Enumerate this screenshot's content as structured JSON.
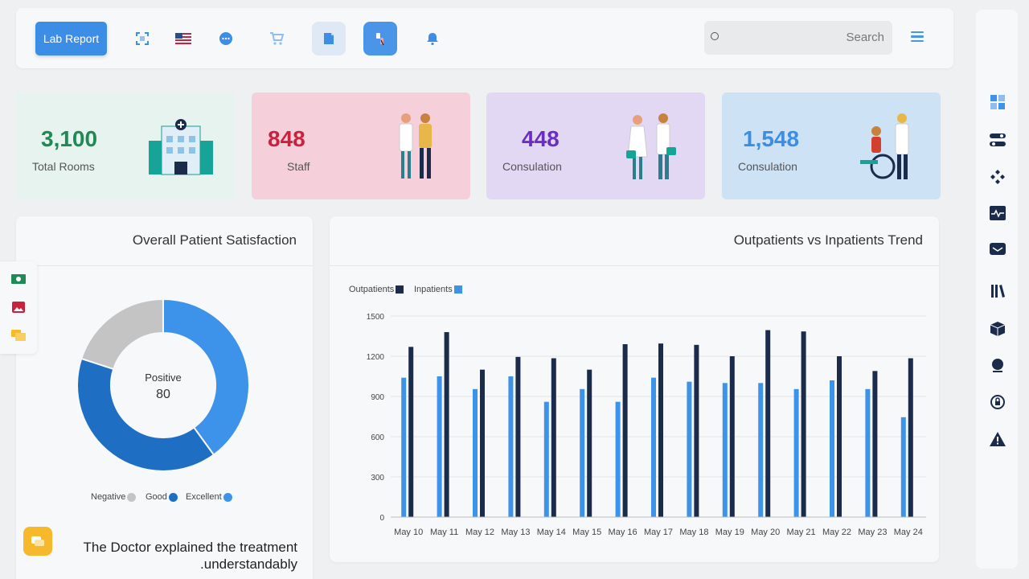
{
  "toolbar": {
    "lab_report_label": "Lab Report",
    "search_placeholder": "Search",
    "icons": [
      "fullscreen-icon",
      "us-flag-icon",
      "chat-icon",
      "cart-icon",
      "note-icon",
      "lab-tube-icon",
      "bell-icon",
      "menu-icon"
    ]
  },
  "stats": [
    {
      "value": "3,100",
      "label": "Total Rooms",
      "color": "#1f8a55",
      "bg": "#e6f3ef",
      "icon": "hospital-icon"
    },
    {
      "value": "848",
      "label": "Staff",
      "color": "#c8223e",
      "bg": "#f5d0da",
      "icon": "doctor-patient-icon"
    },
    {
      "value": "448",
      "label": "Consulation",
      "color": "#6a2fc2",
      "bg": "#e2d8f4",
      "icon": "nurses-icon"
    },
    {
      "value": "1,548",
      "label": "Consulation",
      "color": "#3b8de6",
      "bg": "#cde2f5",
      "icon": "wheelchair-icon"
    }
  ],
  "satisfaction": {
    "title": "Overall Patient Satisfaction",
    "center_label": "Positive",
    "center_value": "80",
    "legend": [
      {
        "name": "Negative",
        "color": "#c4c4c4"
      },
      {
        "name": "Good",
        "color": "#1e6fc4"
      },
      {
        "name": "Excellent",
        "color": "#3d93ea"
      }
    ],
    "quote": "The Doctor explained the treatment .understandably"
  },
  "trend": {
    "title": "Outpatients vs Inpatients Trend"
  },
  "chart_data": [
    {
      "type": "pie",
      "title": "Overall Patient Satisfaction",
      "categories": [
        "Excellent",
        "Good",
        "Negative"
      ],
      "values": [
        40,
        40,
        20
      ],
      "colors": [
        "#3d93ea",
        "#1e6fc4",
        "#c4c4c4"
      ]
    },
    {
      "type": "bar",
      "title": "Outpatients vs Inpatients Trend",
      "categories": [
        "May 10",
        "May 11",
        "May 12",
        "May 13",
        "May 14",
        "May 15",
        "May 16",
        "May 17",
        "May 18",
        "May 19",
        "May 20",
        "May 21",
        "May 22",
        "May 23",
        "May 24"
      ],
      "series": [
        {
          "name": "Outpatients",
          "color": "#1a2b4c",
          "values": [
            1270,
            1380,
            1100,
            1195,
            1185,
            1100,
            1290,
            1295,
            1285,
            1200,
            1395,
            1385,
            1200,
            1090,
            1185
          ]
        },
        {
          "name": "Inpatients",
          "color": "#3d93ea",
          "values": [
            1040,
            1050,
            955,
            1050,
            860,
            955,
            860,
            1040,
            1010,
            1000,
            1000,
            955,
            1020,
            955,
            745
          ]
        }
      ],
      "yticks": [
        0,
        300,
        600,
        900,
        1200,
        1500
      ],
      "ylim": [
        0,
        1500
      ],
      "legend_position": "top-left",
      "grid": true
    }
  ]
}
